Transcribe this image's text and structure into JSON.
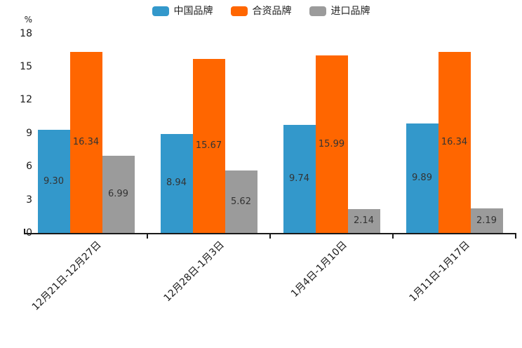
{
  "chart_data": {
    "type": "bar",
    "title": "",
    "categories": [
      "12月21日-12月27日",
      "12月28日-1月3日",
      "1月4日-1月10日",
      "1月11日-1月17日"
    ],
    "series": [
      {
        "name": "中国品牌",
        "color": "#3398cb",
        "values": [
          9.3,
          8.94,
          9.74,
          9.89
        ]
      },
      {
        "name": "合资品牌",
        "color": "#ff6600",
        "values": [
          16.34,
          15.67,
          15.99,
          16.34
        ]
      },
      {
        "name": "进口品牌",
        "color": "#9b9b9b",
        "values": [
          6.99,
          5.62,
          2.14,
          2.19
        ]
      }
    ],
    "xlabel": "",
    "ylabel": "%",
    "ylim": [
      0,
      18
    ],
    "yticks": [
      0,
      3,
      6,
      9,
      12,
      15,
      18
    ],
    "grid": false,
    "legend_position": "top",
    "value_label_format": "2-decimals-inside-bar-center",
    "colors": {
      "axis": "#1a1a1a",
      "value_label": "#333333",
      "tick_label": "#1a1a1a",
      "background": "#ffffff"
    }
  }
}
